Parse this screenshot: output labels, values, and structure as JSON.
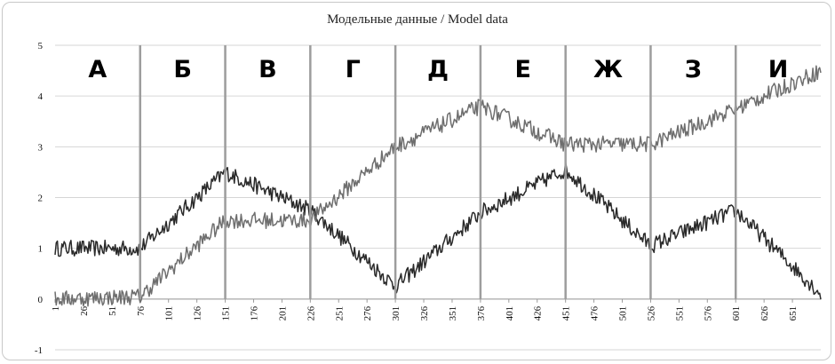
{
  "chart_data": {
    "type": "line",
    "title": "Модельные данные / Model data",
    "xlabel": "",
    "ylabel": "",
    "xlim": [
      1,
      676
    ],
    "ylim": [
      -1,
      5
    ],
    "yticks": [
      -1,
      0,
      1,
      2,
      3,
      4,
      5
    ],
    "xticks": [
      1,
      26,
      51,
      76,
      101,
      126,
      151,
      176,
      201,
      226,
      251,
      276,
      301,
      326,
      351,
      376,
      401,
      426,
      451,
      476,
      501,
      526,
      551,
      576,
      601,
      626,
      651
    ],
    "grid": "horizontal",
    "legend": "none",
    "segment_boundaries": [
      76,
      151,
      226,
      301,
      376,
      451,
      526,
      601
    ],
    "segment_labels": [
      "А",
      "Б",
      "В",
      "Г",
      "Д",
      "Е",
      "Ж",
      "З",
      "И"
    ],
    "series": [
      {
        "color": "#2a2a2a",
        "x": [
          1,
          75,
          76,
          151,
          226,
          301,
          376,
          451,
          526,
          601,
          676
        ],
        "values": [
          1.0,
          1.0,
          1.0,
          2.5,
          1.75,
          0.25,
          1.7,
          2.55,
          1.05,
          1.75,
          0.1
        ]
      },
      {
        "color": "#6e6e6e",
        "x": [
          1,
          76,
          151,
          226,
          301,
          376,
          451,
          526,
          601,
          676
        ],
        "values": [
          0.0,
          0.05,
          1.55,
          1.55,
          3.0,
          3.8,
          3.05,
          3.05,
          3.75,
          4.5
        ]
      }
    ]
  }
}
